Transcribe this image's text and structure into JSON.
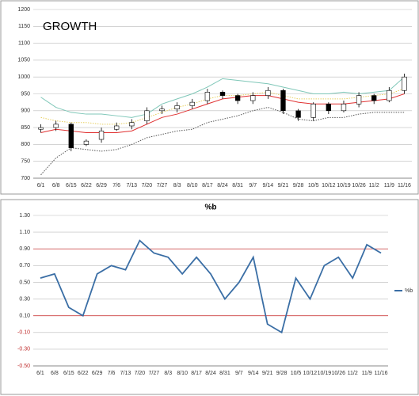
{
  "chart_data": [
    {
      "type": "candlestick",
      "title": "GROWTH",
      "categories": [
        "6/1",
        "6/8",
        "6/15",
        "6/22",
        "6/29",
        "7/6",
        "7/13",
        "7/20",
        "7/27",
        "8/3",
        "8/10",
        "8/17",
        "8/24",
        "8/31",
        "9/7",
        "9/14",
        "9/21",
        "9/28",
        "10/5",
        "10/12",
        "10/19",
        "10/26",
        "11/2",
        "11/9",
        "11/16"
      ],
      "open": [
        845,
        850,
        860,
        800,
        815,
        845,
        855,
        870,
        900,
        905,
        915,
        930,
        955,
        945,
        930,
        945,
        960,
        900,
        880,
        920,
        900,
        920,
        945,
        930,
        960
      ],
      "high": [
        860,
        870,
        865,
        815,
        850,
        865,
        875,
        910,
        915,
        925,
        935,
        965,
        960,
        950,
        955,
        970,
        965,
        905,
        925,
        925,
        930,
        955,
        950,
        970,
        1010
      ],
      "low": [
        835,
        840,
        780,
        795,
        805,
        840,
        845,
        860,
        890,
        895,
        905,
        920,
        935,
        920,
        920,
        935,
        890,
        870,
        870,
        890,
        895,
        910,
        920,
        925,
        950
      ],
      "close": [
        850,
        860,
        790,
        810,
        840,
        855,
        865,
        900,
        905,
        915,
        925,
        955,
        945,
        930,
        945,
        960,
        900,
        880,
        920,
        900,
        920,
        945,
        930,
        960,
        1000
      ],
      "series": [
        {
          "color": "#7fc7b8",
          "dash": false,
          "values": [
            940,
            910,
            895,
            890,
            890,
            885,
            880,
            890,
            920,
            935,
            950,
            970,
            995,
            990,
            985,
            980,
            970,
            960,
            950,
            950,
            955,
            950,
            955,
            960,
            1000
          ]
        },
        {
          "color": "#e8d060",
          "dash": true,
          "values": [
            880,
            870,
            865,
            865,
            860,
            860,
            865,
            880,
            895,
            910,
            920,
            935,
            945,
            945,
            950,
            955,
            945,
            935,
            935,
            935,
            935,
            940,
            945,
            950,
            965
          ]
        },
        {
          "color": "#e03030",
          "dash": false,
          "values": [
            835,
            845,
            840,
            835,
            835,
            835,
            840,
            860,
            880,
            890,
            905,
            920,
            935,
            940,
            945,
            945,
            935,
            925,
            920,
            920,
            920,
            925,
            930,
            935,
            950
          ]
        },
        {
          "color": "#555555",
          "dash": true,
          "values": [
            710,
            760,
            790,
            785,
            780,
            785,
            800,
            820,
            830,
            840,
            845,
            865,
            875,
            885,
            900,
            910,
            895,
            875,
            870,
            880,
            880,
            890,
            895,
            895,
            895
          ]
        }
      ],
      "ylim": [
        700,
        1200
      ],
      "yticks": [
        700,
        750,
        800,
        850,
        900,
        950,
        1000,
        1050,
        1100,
        1150,
        1200
      ],
      "grid": true
    },
    {
      "type": "line",
      "title": "%b",
      "categories": [
        "6/1",
        "6/8",
        "6/15",
        "6/22",
        "6/29",
        "7/6",
        "7/13",
        "7/20",
        "7/27",
        "8/3",
        "8/10",
        "8/17",
        "8/24",
        "8/31",
        "9/7",
        "9/14",
        "9/21",
        "9/28",
        "10/5",
        "10/12",
        "10/19",
        "10/26",
        "11/2",
        "11/9",
        "11/16"
      ],
      "series": [
        {
          "name": "%b",
          "color": "#3a6ea5",
          "values": [
            0.55,
            0.6,
            0.2,
            0.1,
            0.6,
            0.7,
            0.65,
            1.0,
            0.85,
            0.8,
            0.6,
            0.8,
            0.6,
            0.3,
            0.5,
            0.8,
            0.0,
            -0.1,
            0.55,
            0.3,
            0.7,
            0.8,
            0.55,
            0.95,
            0.85
          ]
        }
      ],
      "reference_lines": [
        0.9,
        0.1
      ],
      "reference_color": "#d04040",
      "ylim": [
        -0.5,
        1.3
      ],
      "yticks": [
        {
          "value": -0.5,
          "label": "-0.50"
        },
        {
          "value": -0.3,
          "label": "-0.30"
        },
        {
          "value": -0.1,
          "label": "-0.10"
        },
        {
          "value": 0.1,
          "label": "0.10"
        },
        {
          "value": 0.3,
          "label": "0.30"
        },
        {
          "value": 0.5,
          "label": "0.50"
        },
        {
          "value": 0.7,
          "label": "0.70"
        },
        {
          "value": 0.9,
          "label": "0.90"
        },
        {
          "value": 1.1,
          "label": "1.10"
        },
        {
          "value": 1.3,
          "label": "1.30"
        }
      ],
      "grid": true,
      "legend": "right"
    }
  ]
}
